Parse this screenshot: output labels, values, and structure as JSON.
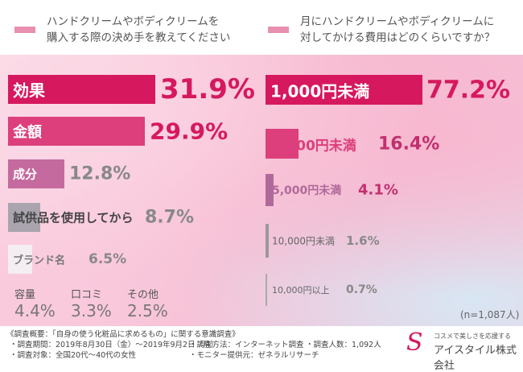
{
  "headers": [
    {
      "title": "ハンドクリームやボディクリームを\n購入する際の決め手を教えてください"
    },
    {
      "title": "月にハンドクリームやボディクリームに\n対してかける費用はどのくらいですか？"
    }
  ],
  "chart_data": [
    {
      "type": "bar",
      "orientation": "horizontal",
      "categories": [
        "効果",
        "金額",
        "成分",
        "試供品を使用してから",
        "ブランド名",
        "容量",
        "口コミ",
        "その他"
      ],
      "values": [
        31.9,
        29.9,
        12.8,
        8.7,
        6.5,
        4.4,
        3.3,
        2.5
      ],
      "labels": [
        "31.9%",
        "29.9%",
        "12.8%",
        "8.7%",
        "6.5%",
        "4.4%",
        "3.3%",
        "2.5%"
      ]
    },
    {
      "type": "bar",
      "orientation": "horizontal",
      "categories": [
        "1,000円未満",
        "3,000円未満",
        "5,000円未満",
        "10,000円未満",
        "10,000円以上"
      ],
      "values": [
        77.2,
        16.4,
        4.1,
        1.6,
        0.7
      ],
      "labels": [
        "77.2%",
        "16.4%",
        "4.1%",
        "1.6%",
        "0.7%"
      ],
      "note": "(n=1,087人)"
    }
  ],
  "colors": {
    "accent": "#d6185f",
    "swatch": "#e98fb0"
  },
  "footer": {
    "title": "《調査概要：「自身の使う化粧品に求めるもの」に関する意識調査》",
    "items": [
      "・調査期間：2019年8月30日（金）〜2019年9月2日（月）",
      "・調査方法：インターネット調査",
      "・調査人数：1,092人",
      "・調査対象：全国20代〜40代の女性",
      "・モニター提供元：ゼネラルリサーチ"
    ]
  },
  "logo": {
    "tagline": "コスメで美しさを応援する",
    "name": "アイスタイル株式会社"
  }
}
